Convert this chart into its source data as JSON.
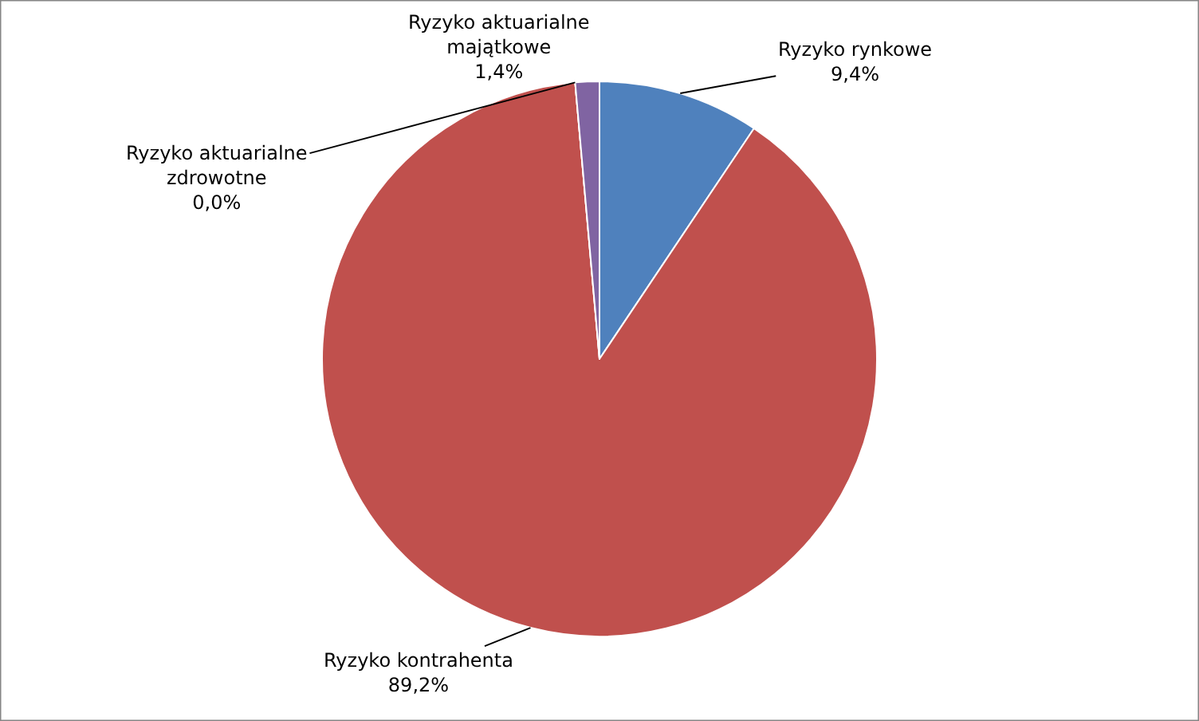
{
  "chart_data": {
    "type": "pie",
    "categories": [
      "Ryzyko rynkowe",
      "Ryzyko kontrahenta",
      "Ryzyko aktuarialne zdrowotne",
      "Ryzyko aktuarialne majątkowe"
    ],
    "values": [
      9.4,
      89.2,
      0.0,
      1.4
    ],
    "value_labels": [
      "9,4%",
      "89,2%",
      "0,0%",
      "1,4%"
    ],
    "colors": [
      "#4f81bd",
      "#c0504d",
      "#9bbb59",
      "#8064a2"
    ],
    "legend": false
  }
}
